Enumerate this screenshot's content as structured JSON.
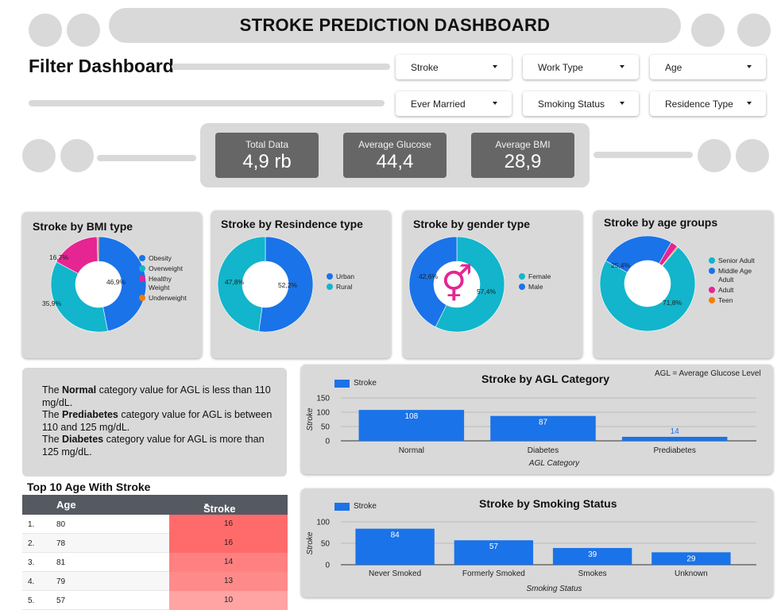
{
  "header": {
    "title": "STROKE PREDICTION DASHBOARD"
  },
  "filters": {
    "title": "Filter Dashboard",
    "dropdowns": [
      {
        "label": "Stroke"
      },
      {
        "label": "Work Type"
      },
      {
        "label": "Age"
      },
      {
        "label": "Ever Married"
      },
      {
        "label": "Smoking Status"
      },
      {
        "label": "Residence Type"
      }
    ]
  },
  "kpis": [
    {
      "label": "Total Data",
      "value": "4,9 rb"
    },
    {
      "label": "Average Glucose",
      "value": "44,4"
    },
    {
      "label": "Average BMI",
      "value": "28,9"
    }
  ],
  "colors": {
    "blue": "#1a73e8",
    "cyan": "#12b5cb",
    "pink": "#e52592",
    "orange": "#f57c00",
    "card": "#d9d9d9"
  },
  "chart_data": [
    {
      "type": "pie",
      "title": "Stroke by BMI type",
      "slices": [
        {
          "label": "Obesity",
          "value": 46.9,
          "display": "46,9%",
          "color": "#1a73e8"
        },
        {
          "label": "Overweight",
          "value": 35.9,
          "display": "35,9%",
          "color": "#12b5cb"
        },
        {
          "label": "Healthy Weight",
          "value": 16.7,
          "display": "16,7%",
          "color": "#e52592"
        },
        {
          "label": "Underweight",
          "value": 0.5,
          "display": "",
          "color": "#f57c00"
        }
      ],
      "legend": [
        "Obesity",
        "Overweight",
        "Healthy Weight",
        "Underweight"
      ]
    },
    {
      "type": "pie",
      "title": "Stroke by Resindence type",
      "slices": [
        {
          "label": "Urban",
          "value": 52.2,
          "display": "52,2%",
          "color": "#1a73e8"
        },
        {
          "label": "Rural",
          "value": 47.8,
          "display": "47,8%",
          "color": "#12b5cb"
        }
      ],
      "legend": [
        "Urban",
        "Rural"
      ]
    },
    {
      "type": "pie",
      "title": "Stroke by gender type",
      "slices": [
        {
          "label": "Female",
          "value": 57.4,
          "display": "57,4%",
          "color": "#12b5cb"
        },
        {
          "label": "Male",
          "value": 42.6,
          "display": "42,6%",
          "color": "#1a73e8"
        }
      ],
      "legend": [
        "Female",
        "Male"
      ]
    },
    {
      "type": "pie",
      "title": "Stroke by age groups",
      "slices": [
        {
          "label": "Senior Adult",
          "value": 71.8,
          "display": "71,8%",
          "color": "#12b5cb"
        },
        {
          "label": "Middle Age Adult",
          "value": 25.4,
          "display": "25,4%",
          "color": "#1a73e8"
        },
        {
          "label": "Adult",
          "value": 2.4,
          "display": "",
          "color": "#e52592"
        },
        {
          "label": "Teen",
          "value": 0.4,
          "display": "",
          "color": "#f57c00"
        }
      ],
      "legend": [
        "Senior Adult",
        "Middle Age Adult",
        "Adult",
        "Teen"
      ]
    },
    {
      "type": "bar",
      "title": "Stroke by AGL Category",
      "categories": [
        "Normal",
        "Diabetes",
        "Prediabetes"
      ],
      "series": [
        {
          "name": "Stroke",
          "values": [
            108,
            87,
            14
          ]
        }
      ],
      "xlabel": "AGL Category",
      "ylabel": "Stroke",
      "ylim": [
        0,
        150
      ],
      "yticks": [
        0,
        50,
        100,
        150
      ],
      "note": "AGL = Average Glucose Level"
    },
    {
      "type": "bar",
      "title": "Stroke by Smoking Status",
      "categories": [
        "Never Smoked",
        "Formerly Smoked",
        "Smokes",
        "Unknown"
      ],
      "series": [
        {
          "name": "Stroke",
          "values": [
            84,
            57,
            39,
            29
          ]
        }
      ],
      "xlabel": "Smoking Status",
      "ylabel": "Stroke",
      "ylim": [
        0,
        100
      ],
      "yticks": [
        0,
        50,
        100
      ]
    }
  ],
  "agl_note": {
    "lines": [
      {
        "pre": "The ",
        "bold": "Normal",
        "post": " category value for AGL is less than 110 mg/dL."
      },
      {
        "pre": "The ",
        "bold": "Prediabetes",
        "post": " category value for AGL is between 110 and 125 mg/dL."
      },
      {
        "pre": "The ",
        "bold": "Diabetes",
        "post": " category value for AGL is more than 125 mg/dL."
      }
    ]
  },
  "age_table": {
    "title": "Top 10 Age With Stroke",
    "headers": {
      "age": "Age",
      "stroke": "Stroke"
    },
    "rows": [
      {
        "rank": "1.",
        "age": "80",
        "stroke": "16"
      },
      {
        "rank": "2.",
        "age": "78",
        "stroke": "16"
      },
      {
        "rank": "3.",
        "age": "81",
        "stroke": "14"
      },
      {
        "rank": "4.",
        "age": "79",
        "stroke": "13"
      },
      {
        "rank": "5.",
        "age": "57",
        "stroke": "10"
      }
    ]
  }
}
